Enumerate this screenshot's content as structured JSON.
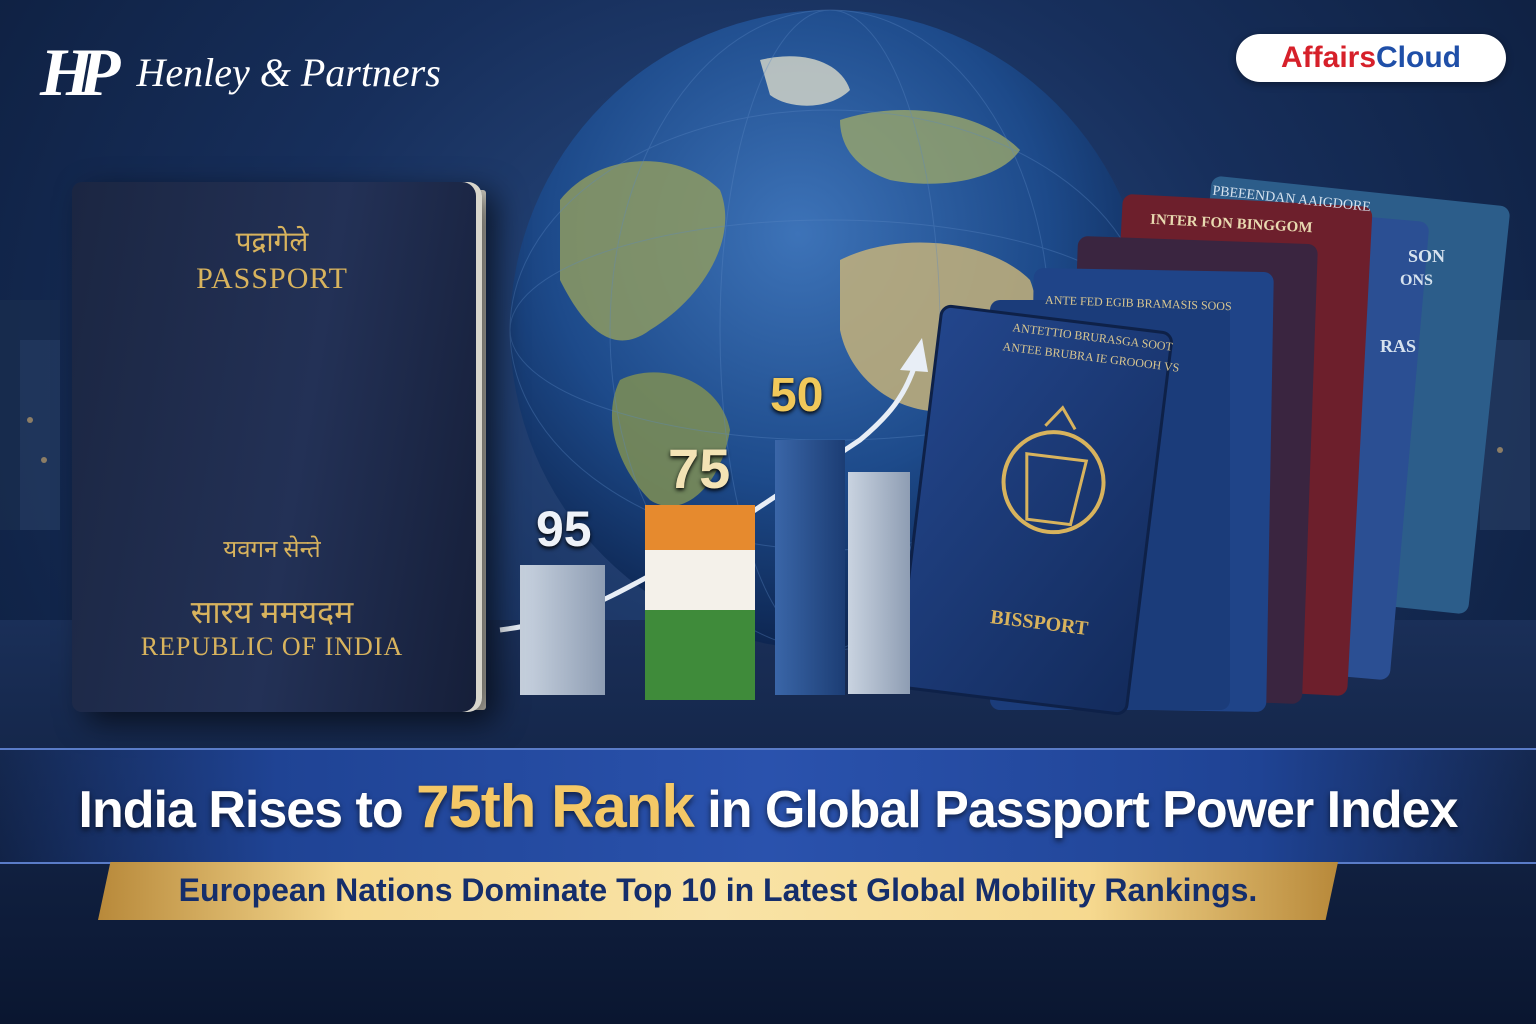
{
  "brand": {
    "mark": "HP",
    "name": "Henley & Partners"
  },
  "logo": {
    "part1": "Affairs",
    "part2": "Cloud"
  },
  "india_passport": {
    "hindi_top": "पद्रागेले",
    "title": "PASSPORT",
    "motto": "यवगन सेन्ते",
    "hindi_bottom": "सारय ममयदम",
    "country": "REPUBLIC OF INDIA"
  },
  "chart": {
    "labels": [
      "95",
      "75",
      "50"
    ]
  },
  "other_passports": {
    "front_line1": "ANTETTIO BRURASGA SOOT",
    "front_line2": "ANTEE BRUBRA IE GROOOH VS",
    "front_title": "BISSPORT",
    "p2": "ANTE FED EGIB BRAMASIS SOOS",
    "p3": "INTER FON BINGGOM",
    "p4_a": "PBEEENDAN AAIGDORE",
    "p4_b": "SON",
    "p4_c": "ONS",
    "p4_d": "RAS"
  },
  "headline": {
    "before": "India Rises to ",
    "highlight": "75th Rank",
    "after": " in Global Passport Power Index"
  },
  "subheadline": "European Nations Dominate Top 10 in Latest Global Mobility Rankings.",
  "colors": {
    "accent_gold": "#f4c866",
    "navy": "#152e6b",
    "saffron": "#e68a2e",
    "india_green": "#3f8b3a"
  }
}
